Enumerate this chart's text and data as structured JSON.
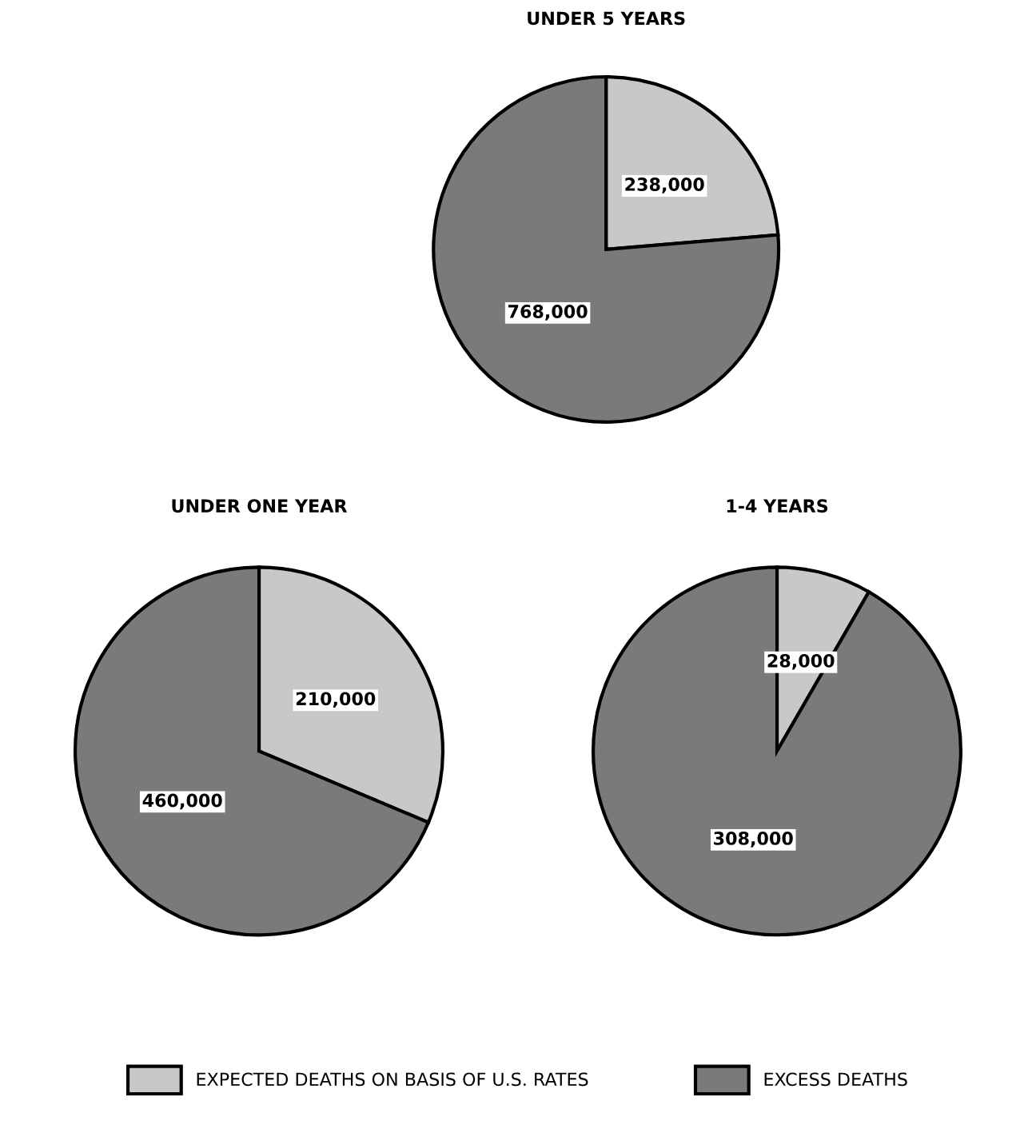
{
  "chart_data": [
    {
      "type": "pie",
      "title": "UNDER 5 YEARS",
      "categories": [
        null,
        null
      ],
      "values": [
        238000,
        768000
      ],
      "value_labels": [
        "238,000",
        "768,000"
      ],
      "colors": [
        "#c8c8c8",
        "#7a7a7a"
      ]
    },
    {
      "type": "pie",
      "title": "UNDER ONE YEAR",
      "categories": [
        null,
        null
      ],
      "values": [
        210000,
        460000
      ],
      "value_labels": [
        "210,000",
        "460,000"
      ],
      "colors": [
        "#c8c8c8",
        "#7a7a7a"
      ]
    },
    {
      "type": "pie",
      "title": "1-4 YEARS",
      "categories": [
        "EXPECTED DEATHS ON BASIS OF U.S. RATES",
        "EXCESS DEATHS"
      ],
      "values": [
        28000,
        308000
      ],
      "value_labels": [
        "28,000",
        "308,000"
      ],
      "colors": [
        "#c8c8c8",
        "#7a7a7a"
      ],
      "legend": "bottom"
    }
  ]
}
